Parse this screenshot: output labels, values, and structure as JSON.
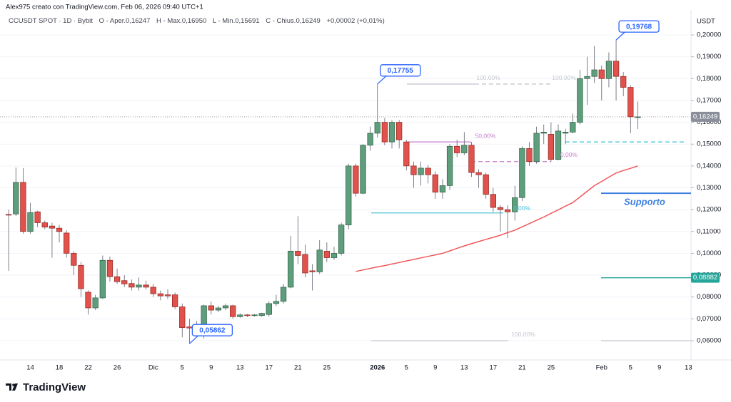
{
  "chart_data": {
    "type": "candlestick",
    "header": "Alex975 creato con TradingView.com, Feb 06, 2026 09:40 UTC+1",
    "legend": [
      "CCUSDT SPOT · 1D · Bybit",
      "O - Aper.0,16247",
      "H - Max.0,16950",
      "L - Min.0,15691",
      "C - Chius.0,16249",
      "+0,00002 (+0,01%)"
    ],
    "y_unit": "USDT",
    "brand": "TradingView",
    "categories": [
      null,
      null,
      null,
      null,
      "14",
      null,
      null,
      null,
      "18",
      null,
      null,
      null,
      "22",
      null,
      null,
      null,
      "26",
      null,
      null,
      null,
      null,
      "Dic",
      null,
      null,
      null,
      "5",
      null,
      null,
      null,
      "9",
      null,
      null,
      null,
      "13",
      null,
      null,
      null,
      "17",
      null,
      null,
      null,
      "21",
      null,
      null,
      null,
      "25",
      null,
      null,
      null,
      null,
      null,
      null,
      "2026",
      null,
      null,
      null,
      "5",
      null,
      null,
      null,
      "9",
      null,
      null,
      null,
      "13",
      null,
      null,
      null,
      "17",
      null,
      null,
      null,
      "21",
      null,
      null,
      null,
      "25",
      null,
      null,
      null,
      null,
      null,
      null,
      "Feb",
      null,
      null,
      null,
      "5",
      null,
      null,
      null,
      "9",
      null,
      null,
      null,
      "13"
    ],
    "open": [
      null,
      0.1178,
      0.118,
      0.1325,
      0.11,
      0.119,
      0.114,
      0.1125,
      0.1115,
      0.1093,
      0.1,
      0.0945,
      0.0822,
      0.075,
      0.0796,
      0.0968,
      0.0893,
      0.0875,
      0.0862,
      0.0845,
      0.0855,
      0.0845,
      0.0815,
      0.081,
      0.081,
      0.0755,
      0.0663,
      0.0658,
      0.067,
      0.076,
      0.074,
      0.075,
      0.076,
      0.071,
      0.0718,
      0.0716,
      0.0715,
      0.072,
      0.077,
      0.078,
      0.0845,
      0.101,
      0.0995,
      0.092,
      0.0915,
      0.101,
      0.098,
      0.1,
      0.113,
      0.14,
      0.1275,
      0.1495,
      0.155,
      0.16,
      0.151,
      0.16,
      0.151,
      0.14,
      0.136,
      0.139,
      0.136,
      0.128,
      0.131,
      0.149,
      0.146,
      0.1495,
      0.137,
      0.136,
      0.127,
      0.121,
      0.12,
      0.119,
      0.1255,
      0.148,
      0.142,
      0.155,
      0.1545,
      0.143,
      0.155,
      0.1555,
      0.16,
      0.18,
      0.181,
      0.184,
      0.18,
      0.188,
      0.181,
      0.176,
      0.16247,
      null,
      null,
      null,
      null,
      null,
      null,
      null
    ],
    "high": [
      null,
      0.12,
      0.1393,
      0.139,
      0.123,
      0.1195,
      0.115,
      0.114,
      0.113,
      0.1105,
      0.101,
      0.096,
      0.083,
      0.081,
      0.099,
      0.0985,
      0.093,
      0.09,
      0.088,
      0.089,
      0.0875,
      0.086,
      0.083,
      0.0835,
      0.082,
      0.077,
      0.07,
      0.069,
      0.0765,
      0.078,
      0.076,
      0.077,
      0.0765,
      0.0725,
      0.0722,
      0.0722,
      0.0728,
      0.078,
      0.081,
      0.086,
      0.108,
      0.117,
      0.104,
      0.095,
      0.106,
      0.105,
      0.103,
      0.114,
      0.141,
      0.141,
      0.15,
      0.158,
      0.17755,
      0.162,
      0.161,
      0.161,
      0.152,
      0.142,
      0.142,
      0.1405,
      0.1375,
      0.134,
      0.15,
      0.152,
      0.1555,
      0.151,
      0.1385,
      0.137,
      0.13,
      0.122,
      0.122,
      0.131,
      0.149,
      0.151,
      0.158,
      0.159,
      0.16,
      0.159,
      0.157,
      0.164,
      0.184,
      0.19,
      0.195,
      0.186,
      0.192,
      0.19768,
      0.183,
      0.177,
      0.1695,
      null,
      null,
      null,
      null,
      null,
      null,
      null
    ],
    "low": [
      null,
      0.092,
      0.117,
      0.109,
      0.109,
      0.112,
      0.111,
      0.098,
      0.105,
      0.098,
      0.09,
      0.08,
      0.072,
      0.074,
      0.079,
      0.087,
      0.086,
      0.0845,
      0.083,
      0.083,
      0.0835,
      0.08,
      0.0785,
      0.079,
      0.0745,
      0.0615,
      0.05862,
      0.065,
      0.061,
      0.072,
      0.073,
      0.074,
      0.07,
      0.0705,
      0.0708,
      0.071,
      0.071,
      0.071,
      0.076,
      0.077,
      0.084,
      0.095,
      0.089,
      0.083,
      0.0905,
      0.096,
      0.097,
      0.099,
      0.111,
      0.126,
      0.127,
      0.147,
      0.153,
      0.1495,
      0.148,
      0.148,
      0.138,
      0.13,
      0.131,
      0.132,
      0.125,
      0.125,
      0.129,
      0.144,
      0.145,
      0.135,
      0.13,
      0.125,
      0.119,
      0.11,
      0.107,
      0.115,
      0.124,
      0.14,
      0.141,
      0.15,
      0.142,
      0.1425,
      0.15,
      0.155,
      0.159,
      0.168,
      0.178,
      0.17,
      0.176,
      0.17,
      0.172,
      0.155,
      0.15691,
      null,
      null,
      null,
      null,
      null,
      null,
      null
    ],
    "close": [
      null,
      0.1175,
      0.1325,
      0.11,
      0.1187,
      0.114,
      0.112,
      0.1115,
      0.11,
      0.1,
      0.0945,
      0.0838,
      0.075,
      0.0796,
      0.0968,
      0.0893,
      0.087,
      0.086,
      0.0845,
      0.0855,
      0.0845,
      0.0815,
      0.0805,
      0.0805,
      0.0755,
      0.066,
      0.0658,
      0.067,
      0.076,
      0.074,
      0.075,
      0.076,
      0.071,
      0.0718,
      0.0715,
      0.0718,
      0.0725,
      0.077,
      0.078,
      0.0845,
      0.101,
      0.099,
      0.091,
      0.0915,
      0.1015,
      0.098,
      0.1,
      0.113,
      0.14,
      0.1275,
      0.1495,
      0.155,
      0.16,
      0.151,
      0.16,
      0.152,
      0.14,
      0.136,
      0.139,
      0.136,
      0.128,
      0.131,
      0.149,
      0.146,
      0.1495,
      0.137,
      0.136,
      0.127,
      0.121,
      0.12,
      0.119,
      0.1255,
      0.148,
      0.142,
      0.155,
      0.1555,
      0.143,
      0.156,
      0.1555,
      0.16,
      0.18,
      0.181,
      0.184,
      0.18,
      0.188,
      0.181,
      0.176,
      0.1625,
      0.16249,
      null,
      null,
      null,
      null,
      null,
      null,
      null
    ],
    "up_color": "#5e9e7c",
    "down_color": "#e0524b",
    "moving_average": {
      "color": "#f0585a",
      "values": [
        null,
        null,
        null,
        null,
        null,
        null,
        null,
        null,
        null,
        null,
        null,
        null,
        null,
        null,
        null,
        null,
        null,
        null,
        null,
        null,
        null,
        null,
        null,
        null,
        null,
        null,
        null,
        null,
        null,
        null,
        null,
        null,
        null,
        null,
        null,
        null,
        null,
        null,
        null,
        null,
        null,
        null,
        null,
        null,
        null,
        null,
        null,
        null,
        null,
        0.0917,
        0.0924,
        0.0931,
        0.0938,
        0.0944,
        0.0951,
        0.0958,
        0.0965,
        0.0972,
        0.0979,
        0.0986,
        0.0993,
        0.1,
        0.1011,
        0.1023,
        0.1034,
        0.1044,
        0.1054,
        0.1064,
        0.1073,
        0.1083,
        0.1095,
        0.1106,
        0.1121,
        0.1136,
        0.1151,
        0.1166,
        0.1183,
        0.1199,
        0.1216,
        0.1232,
        0.1258,
        0.1284,
        0.131,
        0.1329,
        0.1349,
        0.1368,
        0.1379,
        0.1389,
        0.14,
        null,
        null,
        null,
        null,
        null,
        null,
        null
      ]
    },
    "ylim": [
      0.05281,
      0.21273
    ],
    "yticks": [
      {
        "value": 0.06,
        "label": "0,06000"
      },
      {
        "value": 0.07,
        "label": "0,07000"
      },
      {
        "value": 0.08,
        "label": "0,08000"
      },
      {
        "value": 0.09,
        "label": "0,09000"
      },
      {
        "value": 0.1,
        "label": "0,10000"
      },
      {
        "value": 0.11,
        "label": "0,11000"
      },
      {
        "value": 0.12,
        "label": "0,12000"
      },
      {
        "value": 0.13,
        "label": "0,13000"
      },
      {
        "value": 0.14,
        "label": "0,14000"
      },
      {
        "value": 0.15,
        "label": "0,15000"
      },
      {
        "value": 0.16,
        "label": "0,16000"
      },
      {
        "value": 0.17,
        "label": "0,17000"
      },
      {
        "value": 0.18,
        "label": "0,18000"
      },
      {
        "value": 0.19,
        "label": "0,19000"
      },
      {
        "value": 0.2,
        "label": "0,20000"
      }
    ],
    "grid": true,
    "callouts": [
      {
        "value": 0.17755,
        "label": "0,17755"
      },
      {
        "value": 0.19768,
        "label": "0,19768"
      },
      {
        "value": 0.05862,
        "label": "0,05862"
      }
    ],
    "levels": [
      {
        "value": 0.1775,
        "color": "#c5c8d0",
        "label": "100,00%"
      },
      {
        "value": 0.1775,
        "color": "#c5c8d0",
        "dashed": true,
        "label": "100,00%"
      },
      {
        "value": 0.151,
        "color": "#c77dcc",
        "label": "50,00%"
      },
      {
        "value": 0.142,
        "color": "#c77dcc",
        "dashed": true,
        "label": "0,00%"
      },
      {
        "value": 0.1185,
        "color": "#4fc3d9",
        "label": "0,00%"
      },
      {
        "value": 0.06,
        "color": "#c5c8d0",
        "label": "100,00%"
      },
      {
        "value": 0.151,
        "color": "#3fc1d8",
        "dashed": true
      },
      {
        "value": 0.1275,
        "color": "#3d7fe0",
        "label": "Supporto"
      },
      {
        "value": 0.08882,
        "color": "#26a69a",
        "price_label": "0,08882"
      },
      {
        "value": 0.06,
        "color": "#c5c8d0"
      }
    ],
    "last_price": {
      "value": 0.16249,
      "label": "0,16249",
      "color": "#8a8e99"
    }
  }
}
